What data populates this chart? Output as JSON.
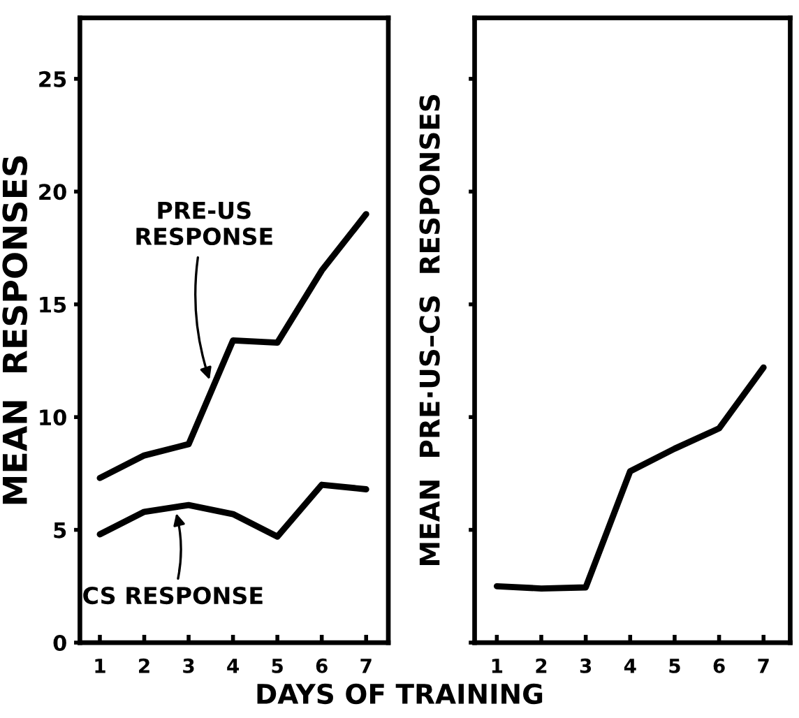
{
  "chart_data": [
    {
      "type": "line",
      "xlabel": "DAYS OF TRAINING",
      "ylabel": "MEAN  RESPONSES",
      "x": [
        1,
        2,
        3,
        4,
        5,
        6,
        7
      ],
      "series": [
        {
          "color": "#000000",
          "values": [
            7.3,
            8.3,
            8.8,
            13.4,
            13.3,
            16.5,
            19.0
          ]
        },
        {
          "color": "#000000",
          "values": [
            4.8,
            5.8,
            6.1,
            5.7,
            4.7,
            7.0,
            6.8
          ]
        }
      ],
      "annotations": [
        {
          "text": "PRE-US\nRESPONSE",
          "x": 3.5,
          "y": 11.5
        },
        {
          "text": "CS RESPONSE",
          "x": 2.7,
          "y": 5.9
        }
      ],
      "xlim": [
        0.55,
        7.5
      ],
      "ylim": [
        0,
        27.7
      ],
      "xticks": [
        1,
        2,
        3,
        4,
        5,
        6,
        7
      ],
      "yticks": [
        0,
        5,
        10,
        15,
        20,
        25
      ],
      "grid": false,
      "marker": "none",
      "line_style": "solid"
    },
    {
      "type": "line",
      "ylabel": "MEAN  PRE·US–CS  RESPONSES",
      "x": [
        1,
        2,
        3,
        4,
        5,
        6,
        7
      ],
      "series": [
        {
          "color": "#000000",
          "values": [
            2.5,
            2.4,
            2.45,
            7.6,
            8.6,
            9.5,
            12.2
          ]
        }
      ],
      "xlim": [
        0.5,
        7.6
      ],
      "ylim": [
        0,
        27.7
      ],
      "xticks": [
        1,
        2,
        3,
        4,
        5,
        6,
        7
      ],
      "yticks": [
        {
          "value": 0,
          "label": null
        },
        {
          "value": 5,
          "label": null
        },
        {
          "value": 10,
          "label": null
        },
        {
          "value": 15,
          "label": null
        },
        {
          "value": 20,
          "label": null
        },
        {
          "value": 25,
          "label": null
        }
      ],
      "tick_labels": "x",
      "grid": false,
      "marker": "none",
      "line_style": "solid"
    }
  ]
}
